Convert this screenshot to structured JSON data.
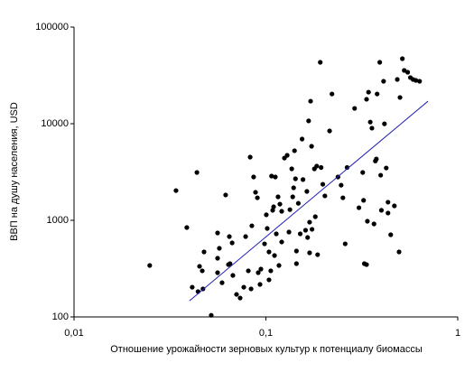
{
  "chart_data": {
    "type": "scatter",
    "xlabel": "Отношение урожайности зерновых культур к потенциалу биомассы",
    "ylabel": "ВВП на душу населения, USD",
    "xlog": true,
    "ylog": true,
    "xlim": [
      0.01,
      1
    ],
    "ylim": [
      100,
      100000
    ],
    "xticks": [
      {
        "value": 0.01,
        "label": "0,01"
      },
      {
        "value": 0.1,
        "label": "0,1"
      },
      1
    ],
    "yticks": [
      100,
      1000,
      10000,
      100000
    ],
    "color": "#000000",
    "x": [
      0.0248,
      0.034,
      0.0387,
      0.0413,
      0.0437,
      0.0443,
      0.0451,
      0.0466,
      0.047,
      0.0476,
      0.0519,
      0.056,
      0.056,
      0.0572,
      0.056,
      0.0591,
      0.0617,
      0.0645,
      0.0638,
      0.0667,
      0.065,
      0.0673,
      0.0703,
      0.0734,
      0.0767,
      0.0784,
      0.081,
      0.0828,
      0.0837,
      0.0845,
      0.0863,
      0.0883,
      0.0903,
      0.0912,
      0.0932,
      0.0942,
      0.0984,
      0.1005,
      0.1016,
      0.1038,
      0.1038,
      0.106,
      0.107,
      0.1085,
      0.1097,
      0.1109,
      0.112,
      0.1133,
      0.1157,
      0.1183,
      0.1209,
      0.1209,
      0.117,
      0.1249,
      0.1291,
      0.1319,
      0.1334,
      0.1364,
      0.138,
      0.1395,
      0.141,
      0.1426,
      0.1443,
      0.1443,
      0.1476,
      0.151,
      0.1544,
      0.1561,
      0.161,
      0.1635,
      0.165,
      0.167,
      0.169,
      0.169,
      0.171,
      0.173,
      0.174,
      0.179,
      0.184,
      0.181,
      0.186,
      0.192,
      0.194,
      0.198,
      0.203,
      0.2148,
      0.221,
      0.2375,
      0.2467,
      0.252,
      0.259,
      0.265,
      0.29,
      0.3055,
      0.3197,
      0.323,
      0.326,
      0.3347,
      0.3347,
      0.338,
      0.3428,
      0.35,
      0.357,
      0.366,
      0.372,
      0.3765,
      0.38,
      0.3922,
      0.3965,
      0.4,
      0.4105,
      0.4149,
      0.4239,
      0.433,
      0.433,
      0.4473,
      0.4674,
      0.484,
      0.4945,
      0.5,
      0.5145,
      0.526,
      0.5485,
      0.5665,
      0.585,
      0.605,
      0.6325
    ],
    "values": [
      341,
      2030,
      842,
      203,
      3130,
      183,
      334,
      300,
      195,
      471,
      104,
      740,
      405,
      513,
      287,
      226,
      1830,
      679,
      348,
      584,
      356,
      269,
      171,
      157,
      203,
      679,
      300,
      4510,
      195,
      878,
      2810,
      1950,
      1710,
      287,
      217,
      313,
      571,
      1140,
      824,
      471,
      242,
      300,
      2870,
      1270,
      1380,
      432,
      2810,
      724,
      1750,
      1470,
      1240,
      597,
      341,
      4410,
      4710,
      756,
      1290,
      3410,
      1750,
      2170,
      5250,
      2690,
      481,
      356,
      1500,
      724,
      6940,
      2640,
      789,
      1990,
      664,
      10700,
      957,
      461,
      17100,
      5840,
      807,
      3410,
      3640,
      1090,
      441,
      43200,
      3520,
      2360,
      1790,
      8420,
      20300,
      2810,
      2310,
      1710,
      571,
      3520,
      14400,
      1350,
      3130,
      1610,
      356,
      17900,
      348,
      979,
      21200,
      10400,
      8990,
      918,
      4110,
      4310,
      20300,
      43200,
      2930,
      1270,
      27500,
      9970,
      3480,
      1540,
      1190,
      709,
      1410,
      28700,
      471,
      18700,
      47100,
      35600,
      34100,
      30000,
      28700,
      28100,
      27500
    ],
    "trendline": {
      "color": "#1f1fb4",
      "x": [
        0.04,
        0.7
      ],
      "values": [
        147,
        17100
      ]
    }
  }
}
